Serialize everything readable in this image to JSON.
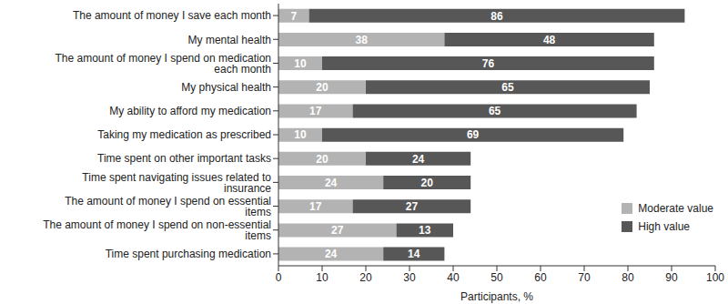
{
  "chart_data": {
    "type": "bar",
    "orientation": "horizontal",
    "stacked": true,
    "data_labels": true,
    "grid": false,
    "legend": "lower right",
    "xlabel": "Participants, %",
    "xlim": [
      0,
      100
    ],
    "xticks": [
      0,
      10,
      20,
      30,
      40,
      50,
      60,
      70,
      80,
      90,
      100
    ],
    "categories": [
      "The amount of money I save each month",
      "My mental health",
      "The amount of money I spend on medication each month",
      "My physical health",
      "My ability to afford my medication",
      "Taking my medication as prescribed",
      "Time spent on other important tasks",
      "Time spent navigating issues related to insurance",
      "The amount of money I spend on essential items",
      "The amount of money I spend on non-essential items",
      "Time spent purchasing medication"
    ],
    "series": [
      {
        "name": "Moderate value",
        "color": "#b3b3b3",
        "values": [
          7,
          38,
          10,
          20,
          17,
          10,
          20,
          24,
          17,
          27,
          24
        ]
      },
      {
        "name": "High value",
        "color": "#575757",
        "values": [
          86,
          48,
          76,
          65,
          65,
          69,
          24,
          20,
          27,
          13,
          14
        ]
      }
    ]
  }
}
